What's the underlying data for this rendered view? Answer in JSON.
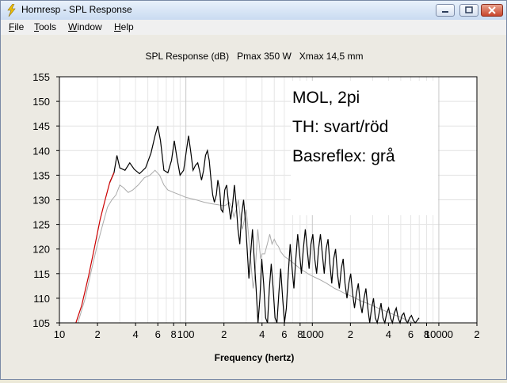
{
  "window": {
    "title": "Hornresp - SPL Response",
    "controls": [
      "minimize-icon",
      "maximize-icon",
      "close-icon"
    ]
  },
  "menu": [
    {
      "label": "File",
      "mnemonic": "F",
      "rest": "ile"
    },
    {
      "label": "Tools",
      "mnemonic": "T",
      "rest": "ools"
    },
    {
      "label": "Window",
      "mnemonic": "W",
      "rest": "indow"
    },
    {
      "label": "Help",
      "mnemonic": "H",
      "rest": "elp"
    }
  ],
  "chart_data": {
    "type": "line",
    "title": "SPL Response (dB)   Pmax 350 W   Xmax 14,5 mm",
    "xlabel": "Frequency (hertz)",
    "ylabel": "",
    "xscale": "log",
    "xlim": [
      10,
      20000
    ],
    "ylim": [
      105,
      155
    ],
    "x_tick_labels": [
      {
        "value": 10,
        "label": "10"
      },
      {
        "value": 20,
        "label": "2"
      },
      {
        "value": 40,
        "label": "4"
      },
      {
        "value": 60,
        "label": "6"
      },
      {
        "value": 80,
        "label": "8"
      },
      {
        "value": 100,
        "label": "100"
      },
      {
        "value": 200,
        "label": "2"
      },
      {
        "value": 400,
        "label": "4"
      },
      {
        "value": 600,
        "label": "6"
      },
      {
        "value": 800,
        "label": "8"
      },
      {
        "value": 1000,
        "label": "1000"
      },
      {
        "value": 2000,
        "label": "2"
      },
      {
        "value": 4000,
        "label": "4"
      },
      {
        "value": 6000,
        "label": "6"
      },
      {
        "value": 8000,
        "label": "8"
      },
      {
        "value": 10000,
        "label": "10000"
      },
      {
        "value": 20000,
        "label": "2"
      }
    ],
    "y_ticks": [
      105,
      110,
      115,
      120,
      125,
      130,
      135,
      140,
      145,
      150,
      155
    ],
    "grid": true,
    "annotations": [
      "MOL, 2pi",
      "TH: svart/röd",
      "Basreflex: grå"
    ],
    "series": [
      {
        "color": "#000000",
        "low_freq_color": "#cc0000",
        "low_freq_until": 25,
        "points": [
          [
            13.5,
            105
          ],
          [
            15,
            108.5
          ],
          [
            17,
            114.5
          ],
          [
            19,
            120.5
          ],
          [
            21,
            126
          ],
          [
            23,
            130
          ],
          [
            25,
            133.5
          ],
          [
            27,
            135.5
          ],
          [
            28.5,
            139
          ],
          [
            30,
            136.5
          ],
          [
            33,
            136
          ],
          [
            36,
            137.5
          ],
          [
            39,
            136.2
          ],
          [
            43,
            135.3
          ],
          [
            48,
            136.5
          ],
          [
            53,
            139.5
          ],
          [
            57,
            143
          ],
          [
            60,
            145
          ],
          [
            63,
            142
          ],
          [
            67,
            136
          ],
          [
            72,
            135.5
          ],
          [
            77,
            138
          ],
          [
            81,
            142
          ],
          [
            85,
            138.5
          ],
          [
            90,
            135
          ],
          [
            96,
            136
          ],
          [
            101,
            140
          ],
          [
            105,
            143
          ],
          [
            109,
            140
          ],
          [
            114,
            136
          ],
          [
            119,
            137
          ],
          [
            124,
            137.5
          ],
          [
            128,
            136
          ],
          [
            133,
            134
          ],
          [
            138,
            136
          ],
          [
            143,
            139
          ],
          [
            148,
            140
          ],
          [
            153,
            138
          ],
          [
            158,
            134
          ],
          [
            163,
            131
          ],
          [
            168,
            129.5
          ],
          [
            174,
            131
          ],
          [
            179,
            134
          ],
          [
            185,
            132
          ],
          [
            190,
            128
          ],
          [
            196,
            127.5
          ],
          [
            203,
            132
          ],
          [
            210,
            133
          ],
          [
            218,
            129
          ],
          [
            226,
            126
          ],
          [
            234,
            129
          ],
          [
            242,
            133
          ],
          [
            250,
            129
          ],
          [
            258,
            124
          ],
          [
            267,
            121
          ],
          [
            276,
            127
          ],
          [
            286,
            130
          ],
          [
            295,
            126
          ],
          [
            305,
            120
          ],
          [
            315,
            114
          ],
          [
            325,
            119
          ],
          [
            336,
            124
          ],
          [
            347,
            118
          ],
          [
            359,
            112
          ],
          [
            372,
            105
          ],
          [
            385,
            110
          ],
          [
            398,
            118
          ],
          [
            412,
            113
          ],
          [
            427,
            106
          ],
          [
            442,
            104
          ],
          [
            457,
            112
          ],
          [
            473,
            117
          ],
          [
            490,
            112
          ],
          [
            507,
            106
          ],
          [
            525,
            104
          ],
          [
            543,
            111
          ],
          [
            562,
            116
          ],
          [
            582,
            110
          ],
          [
            602,
            105
          ],
          [
            623,
            108
          ],
          [
            645,
            115
          ],
          [
            668,
            121
          ],
          [
            691,
            116
          ],
          [
            715,
            112
          ],
          [
            740,
            118
          ],
          [
            766,
            123
          ],
          [
            793,
            119
          ],
          [
            820,
            115
          ],
          [
            849,
            120
          ],
          [
            879,
            124
          ],
          [
            910,
            120
          ],
          [
            942,
            116
          ],
          [
            975,
            121
          ],
          [
            1009,
            123
          ],
          [
            1044,
            118
          ],
          [
            1081,
            115
          ],
          [
            1119,
            120
          ],
          [
            1158,
            123
          ],
          [
            1199,
            119
          ],
          [
            1241,
            115
          ],
          [
            1285,
            120
          ],
          [
            1330,
            122
          ],
          [
            1376,
            117
          ],
          [
            1424,
            113
          ],
          [
            1474,
            118
          ],
          [
            1526,
            120
          ],
          [
            1580,
            115
          ],
          [
            1635,
            112
          ],
          [
            1692,
            116
          ],
          [
            1752,
            118
          ],
          [
            1813,
            113
          ],
          [
            1877,
            110
          ],
          [
            1943,
            113
          ],
          [
            2011,
            115
          ],
          [
            2081,
            111
          ],
          [
            2154,
            108
          ],
          [
            2230,
            111
          ],
          [
            2308,
            113
          ],
          [
            2389,
            109
          ],
          [
            2473,
            107
          ],
          [
            2560,
            110
          ],
          [
            2650,
            112
          ],
          [
            2743,
            108
          ],
          [
            2840,
            105
          ],
          [
            2940,
            108
          ],
          [
            3043,
            110
          ],
          [
            3150,
            106
          ],
          [
            3260,
            104
          ],
          [
            3375,
            107
          ],
          [
            3494,
            109
          ],
          [
            3617,
            106
          ],
          [
            3744,
            105
          ],
          [
            3876,
            107
          ],
          [
            4012,
            108
          ],
          [
            4153,
            106
          ],
          [
            4299,
            105
          ],
          [
            4450,
            107
          ],
          [
            4606,
            108
          ],
          [
            4768,
            106
          ],
          [
            4936,
            105
          ],
          [
            5110,
            106.5
          ],
          [
            5290,
            107
          ],
          [
            5476,
            105.5
          ],
          [
            5669,
            105
          ],
          [
            5868,
            106
          ],
          [
            6075,
            106.5
          ],
          [
            6288,
            105.5
          ],
          [
            6510,
            105
          ],
          [
            6739,
            105.5
          ],
          [
            6976,
            106
          ]
        ]
      },
      {
        "color": "#aaaaaa",
        "points": [
          [
            14,
            105
          ],
          [
            16,
            110
          ],
          [
            18,
            116
          ],
          [
            20,
            121
          ],
          [
            22,
            125
          ],
          [
            24,
            128.5
          ],
          [
            26,
            130
          ],
          [
            28,
            131
          ],
          [
            30,
            133
          ],
          [
            32,
            132.5
          ],
          [
            35,
            131.5
          ],
          [
            38,
            132
          ],
          [
            42,
            133
          ],
          [
            47,
            134.5
          ],
          [
            52,
            135
          ],
          [
            57,
            136
          ],
          [
            62,
            135
          ],
          [
            67,
            133
          ],
          [
            72,
            132
          ],
          [
            80,
            131.5
          ],
          [
            90,
            131
          ],
          [
            100,
            130.5
          ],
          [
            120,
            130
          ],
          [
            140,
            129.5
          ],
          [
            160,
            129.2
          ],
          [
            180,
            129
          ],
          [
            200,
            128.8
          ],
          [
            210,
            129
          ],
          [
            220,
            129.5
          ],
          [
            230,
            128.5
          ],
          [
            240,
            126.5
          ],
          [
            250,
            128
          ],
          [
            260,
            130
          ],
          [
            270,
            126
          ],
          [
            280,
            124
          ],
          [
            290,
            126
          ],
          [
            300,
            128
          ],
          [
            310,
            124
          ],
          [
            320,
            120
          ],
          [
            330,
            116
          ],
          [
            340,
            112
          ],
          [
            350,
            114
          ],
          [
            360,
            119
          ],
          [
            370,
            124
          ],
          [
            380,
            121
          ],
          [
            390,
            118
          ],
          [
            400,
            119
          ],
          [
            420,
            119
          ],
          [
            440,
            121
          ],
          [
            460,
            123
          ],
          [
            480,
            121
          ],
          [
            500,
            122
          ],
          [
            520,
            121
          ],
          [
            540,
            120.5
          ],
          [
            560,
            119.5
          ],
          [
            580,
            119
          ],
          [
            600,
            118.5
          ],
          [
            640,
            118
          ],
          [
            680,
            117.5
          ],
          [
            720,
            117
          ],
          [
            760,
            116.5
          ],
          [
            800,
            116
          ],
          [
            860,
            115.5
          ],
          [
            920,
            115
          ],
          [
            1000,
            114.5
          ],
          [
            1100,
            114
          ],
          [
            1200,
            113.5
          ],
          [
            1300,
            113
          ],
          [
            1400,
            112.5
          ],
          [
            1500,
            112
          ],
          [
            1650,
            111.5
          ],
          [
            1800,
            111
          ],
          [
            2000,
            110.5
          ],
          [
            2200,
            110
          ],
          [
            2400,
            109.5
          ],
          [
            2700,
            109
          ],
          [
            3000,
            108.5
          ],
          [
            3300,
            108
          ],
          [
            3700,
            107.5
          ],
          [
            4100,
            107
          ],
          [
            4600,
            106.5
          ],
          [
            5100,
            106
          ],
          [
            5700,
            105.5
          ],
          [
            6300,
            105
          ]
        ]
      }
    ]
  }
}
